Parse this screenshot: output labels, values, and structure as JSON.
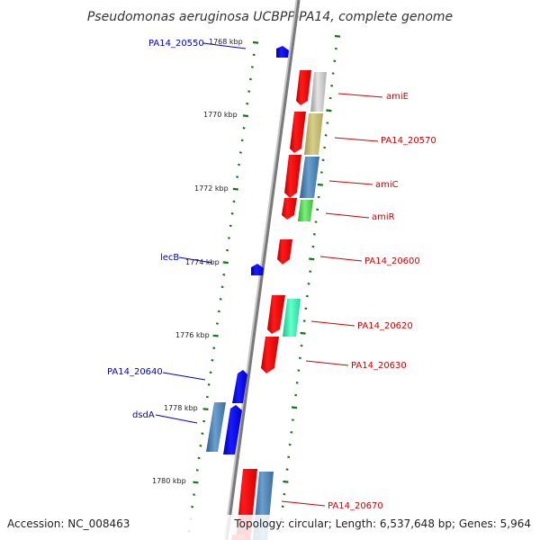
{
  "title": "Pseudomonas aeruginosa UCBPP-PA14, complete genome",
  "accession": "Accession: NC_008463",
  "topology": "Topology: circular; Length: 6,537,648 bp; Genes: 5,964",
  "ticks": [
    "1768 kbp",
    "1770 kbp",
    "1772 kbp",
    "1774 kbp",
    "1776 kbp",
    "1778 kbp",
    "1780 kbp"
  ],
  "genes_forward": [
    "PA14_20550",
    "lecB",
    "PA14_20640",
    "dsdA"
  ],
  "genes_reverse": [
    "amiE",
    "PA14_20570",
    "amiC",
    "amiR",
    "PA14_20600",
    "PA14_20620",
    "PA14_20630",
    "PA14_20670"
  ],
  "colors": {
    "forward_label": "#0000cc",
    "reverse_label": "#cc0000",
    "forward_gene": "#0000ff",
    "reverse_gene": "#ff0000",
    "tick_dash": "#117711",
    "backbone": "#808080"
  }
}
